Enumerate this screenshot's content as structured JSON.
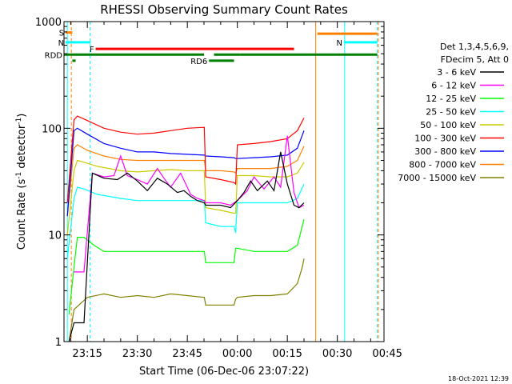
{
  "chart_data": {
    "type": "line",
    "title": "RHESSI Observing Summary Count Rates",
    "xlabel": "Start Time (06-Dec-06 23:07:22)",
    "ylabel_main": "Count Rate (s",
    "ylabel_sup1": "-1",
    "ylabel_mid": " detector",
    "ylabel_sup2": "-1",
    "ylabel_end": ")",
    "y_scale": "log",
    "ylim": [
      1,
      1000
    ],
    "xlim_minutes": [
      -52,
      44
    ],
    "x_ticks": [
      {
        "min": -45,
        "label": "23:15"
      },
      {
        "min": -30,
        "label": "23:30"
      },
      {
        "min": -15,
        "label": "23:45"
      },
      {
        "min": 0,
        "label": "00:00"
      },
      {
        "min": 15,
        "label": "00:15"
      },
      {
        "min": 30,
        "label": "00:30"
      },
      {
        "min": 45,
        "label": "00:45"
      }
    ],
    "y_ticks": [
      {
        "val": 1,
        "label": "1"
      },
      {
        "val": 10,
        "label": "10"
      },
      {
        "val": 100,
        "label": "100"
      },
      {
        "val": 1000,
        "label": "1000"
      }
    ],
    "legend_position": "right",
    "legend_header": [
      "Det 1,3,4,5,6,9,",
      "FDecim 5, Att 0"
    ],
    "timestamp": "18-Oct-2021 12:39",
    "series": [
      {
        "name": "3 - 6 keV",
        "color": "#000000",
        "t": [
          -50.5,
          -49,
          -46,
          -43.5,
          -40,
          -36,
          -33,
          -30,
          -27,
          -24,
          -21,
          -18,
          -16,
          -14,
          -12,
          -9.9,
          -9.5,
          -5,
          -2,
          0,
          2,
          4,
          6,
          9,
          11,
          13,
          15,
          17,
          18.5,
          20
        ],
        "v": [
          1,
          1.5,
          1.5,
          38,
          34,
          33,
          38,
          32,
          26,
          34,
          30,
          25,
          26,
          23,
          21,
          20,
          19,
          19,
          18,
          21,
          25,
          32,
          26,
          32,
          26,
          60,
          30,
          19,
          18,
          20
        ]
      },
      {
        "name": "6 - 12 keV",
        "color": "#ff00ff",
        "t": [
          -49,
          -46,
          -43.5,
          -40,
          -37,
          -35,
          -33,
          -30,
          -27,
          -24,
          -22,
          -20,
          -17,
          -14,
          -12,
          -9.9,
          -9.5,
          -5,
          -2,
          0,
          3,
          5,
          8,
          11,
          13,
          15,
          17,
          18.5,
          20
        ],
        "v": [
          4.5,
          4.5,
          38,
          35,
          36,
          55,
          36,
          33,
          30,
          42,
          34,
          28,
          38,
          24,
          22,
          21,
          20,
          20,
          19,
          21,
          26,
          35,
          27,
          35,
          28,
          85,
          25,
          18,
          19
        ]
      },
      {
        "name": "12 - 25 keV",
        "color": "#00ff00",
        "t": [
          -50.5,
          -49,
          -48,
          -46,
          -43,
          -40,
          -35,
          -30,
          -25,
          -20,
          -15,
          -10,
          -9.9,
          -9.5,
          -5,
          -1,
          -0.5,
          0,
          5,
          10,
          15,
          18,
          20
        ],
        "v": [
          1.8,
          5,
          9.5,
          9.5,
          8,
          7,
          7,
          7,
          7,
          7,
          7,
          7,
          7,
          5.5,
          5.5,
          5.5,
          7.5,
          7.5,
          7,
          7,
          7,
          8,
          14
        ]
      },
      {
        "name": "25 - 50 keV",
        "color": "#00ffff",
        "t": [
          -51,
          -49,
          -48,
          -46,
          -42,
          -35,
          -30,
          -25,
          -20,
          -15,
          -10,
          -9.9,
          -9.5,
          -5,
          -1,
          -0.5,
          0,
          5,
          10,
          15,
          18,
          20
        ],
        "v": [
          6,
          22,
          28,
          27,
          24,
          22,
          21,
          21,
          21,
          21,
          21,
          21,
          13,
          12,
          12,
          10.5,
          20,
          20,
          20,
          20,
          22,
          30
        ]
      },
      {
        "name": "50 - 100 keV",
        "color": "#cccc00",
        "t": [
          -51,
          -49,
          -48,
          -46,
          -42,
          -35,
          -30,
          -25,
          -20,
          -15,
          -10,
          -9.9,
          -9.5,
          -5,
          -1,
          -0.5,
          0,
          5,
          10,
          15,
          18,
          20
        ],
        "v": [
          10,
          40,
          50,
          48,
          44,
          40,
          39,
          40,
          41,
          40,
          40,
          40,
          18,
          17,
          16,
          16,
          36,
          36,
          35,
          35,
          38,
          48
        ]
      },
      {
        "name": "100 - 300 keV",
        "color": "#ff0000",
        "t": [
          -51,
          -49,
          -48,
          -45,
          -40,
          -35,
          -30,
          -25,
          -20,
          -15,
          -10,
          -9.9,
          -9.5,
          -5,
          -1,
          -0.5,
          0,
          5,
          10,
          15,
          18,
          20
        ],
        "v": [
          20,
          120,
          130,
          118,
          100,
          92,
          88,
          90,
          95,
          100,
          102,
          102,
          35,
          33,
          31,
          30,
          70,
          72,
          75,
          80,
          95,
          125
        ]
      },
      {
        "name": "300 - 800 keV",
        "color": "#0000ff",
        "t": [
          -51,
          -49,
          -48,
          -45,
          -40,
          -35,
          -30,
          -25,
          -20,
          -15,
          -10,
          -9.9,
          -9.5,
          -5,
          -1,
          -0.5,
          0,
          5,
          10,
          15,
          18,
          20
        ],
        "v": [
          15,
          95,
          100,
          88,
          72,
          65,
          60,
          60,
          58,
          57,
          56,
          56,
          55,
          54,
          53,
          52,
          52,
          53,
          54,
          56,
          65,
          95
        ]
      },
      {
        "name": "800 - 7000 keV",
        "color": "#ff8000",
        "t": [
          -51,
          -49,
          -48,
          -45,
          -40,
          -35,
          -30,
          -25,
          -20,
          -15,
          -10,
          -9.9,
          -9.5,
          -5,
          -1,
          -0.5,
          0,
          5,
          10,
          15,
          18,
          20
        ],
        "v": [
          15,
          65,
          70,
          62,
          55,
          51,
          50,
          50,
          50,
          50,
          50,
          50,
          40,
          40,
          39,
          38,
          42,
          42,
          42,
          44,
          50,
          68
        ]
      },
      {
        "name": "7000 - 15000 keV",
        "color": "#808000",
        "t": [
          -50.5,
          -49,
          -45,
          -40,
          -35,
          -30,
          -25,
          -20,
          -15,
          -10,
          -9.9,
          -9.5,
          -5,
          -1,
          -0.5,
          0,
          5,
          10,
          15,
          18,
          19.5,
          20
        ],
        "v": [
          1,
          2,
          2.6,
          2.8,
          2.6,
          2.7,
          2.6,
          2.8,
          2.7,
          2.6,
          2.6,
          2.2,
          2.2,
          2.2,
          2.5,
          2.6,
          2.7,
          2.7,
          2.8,
          3.5,
          5,
          6
        ]
      }
    ],
    "flag_bars": [
      {
        "label": "S",
        "color": "#ff8000",
        "t_start": -51.5,
        "t_end": -49.5,
        "level": 790
      },
      {
        "label": "N",
        "color": "#00ffff",
        "t_start": -51.5,
        "t_end": -44,
        "level": 640
      },
      {
        "label": "N",
        "color": "#00ffff",
        "t_start": 32,
        "t_end": 42,
        "level": 640
      },
      {
        "label": "",
        "color": "#ff8000",
        "t_start": 24,
        "t_end": 42,
        "level": 770
      },
      {
        "label": "F",
        "color": "#ff0000",
        "t_start": -42.5,
        "t_end": 17,
        "level": 555
      },
      {
        "label": "RDD",
        "color": "#008000",
        "t_start": -52,
        "t_end": -10,
        "level": 490
      },
      {
        "label": "",
        "color": "#008000",
        "t_start": -7,
        "t_end": 1,
        "level": 490
      },
      {
        "label": "",
        "color": "#008000",
        "t_start": 1,
        "t_end": 42,
        "level": 490
      },
      {
        "label": "RD6",
        "color": "#008000",
        "t_start": -8.5,
        "t_end": -1,
        "level": 430
      },
      {
        "label": "",
        "color": "#008000",
        "t_start": -49.5,
        "t_end": -48.5,
        "level": 430
      }
    ],
    "vertical_markers": [
      {
        "t": -51.0,
        "color": "#00ffff",
        "style": "solid"
      },
      {
        "t": -49.8,
        "color": "#ff8000",
        "style": "dashed"
      },
      {
        "t": -44.2,
        "color": "#00ffff",
        "style": "dashed"
      },
      {
        "t": 23.5,
        "color": "#ff8000",
        "style": "solid"
      },
      {
        "t": 32.2,
        "color": "#00ffff",
        "style": "solid"
      },
      {
        "t": 42.0,
        "color": "#00ffff",
        "style": "dashed"
      },
      {
        "t": 42.3,
        "color": "#ff8000",
        "style": "dashed"
      }
    ]
  }
}
